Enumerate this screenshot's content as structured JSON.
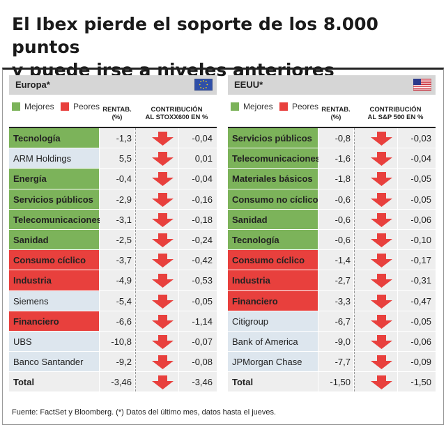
{
  "headline": {
    "line1": "El Ibex pierde el soporte de los 8.000 puntos",
    "line2": "y puede irse a niveles anteriores"
  },
  "colors": {
    "mejores": "#7cb35a",
    "peores": "#e8403d",
    "default": "#dde6ee",
    "arrow": "#e8403d",
    "gray": "#eeeeee"
  },
  "legend": {
    "mejores": "Mejores",
    "peores": "Peores"
  },
  "europa": {
    "title": "Europa*",
    "flag_icon": "eu-flag-icon",
    "col_rentab": [
      "RENTAB.",
      "(%)"
    ],
    "col_contrib": [
      "CONTRIBUCIÓN",
      "AL STOXX600 EN %"
    ]
  },
  "eeuu": {
    "title": "EEUU*",
    "flag_icon": "us-flag-icon",
    "col_rentab": [
      "RENTAB.",
      "(%)"
    ],
    "col_contrib": [
      "CONTRIBUCIÓN",
      "AL S&P 500 EN %"
    ]
  },
  "chart_data": [
    {
      "type": "table",
      "title": "Europa*",
      "columns": [
        "",
        "RENTAB. (%)",
        "CONTRIBUCIÓN AL STOXX600 EN %"
      ],
      "rows": [
        {
          "name": "Tecnología",
          "group": "mejores",
          "rentab": "-1,3",
          "contrib": "-0,04"
        },
        {
          "name": "ARM Holdings",
          "group": "none",
          "rentab": "5,5",
          "contrib": "0,01"
        },
        {
          "name": "Energía",
          "group": "mejores",
          "rentab": "-0,4",
          "contrib": "-0,04"
        },
        {
          "name": "Servicios públicos",
          "group": "mejores",
          "rentab": "-2,9",
          "contrib": "-0,16"
        },
        {
          "name": "Telecomunicaciones",
          "group": "mejores",
          "rentab": "-3,1",
          "contrib": "-0,18"
        },
        {
          "name": "Sanidad",
          "group": "mejores",
          "rentab": "-2,5",
          "contrib": "-0,24"
        },
        {
          "name": "Consumo cíclico",
          "group": "peores",
          "rentab": "-3,7",
          "contrib": "-0,42"
        },
        {
          "name": "Industria",
          "group": "peores",
          "rentab": "-4,9",
          "contrib": "-0,53"
        },
        {
          "name": "Siemens",
          "group": "none",
          "rentab": "-5,4",
          "contrib": "-0,05"
        },
        {
          "name": "Financiero",
          "group": "peores",
          "rentab": "-6,6",
          "contrib": "-1,14"
        },
        {
          "name": "UBS",
          "group": "none",
          "rentab": "-10,8",
          "contrib": "-0,07"
        },
        {
          "name": "Banco Santander",
          "group": "none",
          "rentab": "-9,2",
          "contrib": "-0,08"
        },
        {
          "name": "Total",
          "group": "total",
          "rentab": "-3,46",
          "contrib": "-3,46"
        }
      ]
    },
    {
      "type": "table",
      "title": "EEUU*",
      "columns": [
        "",
        "RENTAB. (%)",
        "CONTRIBUCIÓN AL S&P 500 EN %"
      ],
      "rows": [
        {
          "name": "Servicios públicos",
          "group": "mejores",
          "rentab": "-0,8",
          "contrib": "-0,03"
        },
        {
          "name": "Telecomunicaciones",
          "group": "mejores",
          "rentab": "-1,6",
          "contrib": "-0,04"
        },
        {
          "name": "Materiales básicos",
          "group": "mejores",
          "rentab": "-1,8",
          "contrib": "-0,05"
        },
        {
          "name": "Consumo no cíclico",
          "group": "mejores",
          "rentab": "-0,6",
          "contrib": "-0,05"
        },
        {
          "name": "Sanidad",
          "group": "mejores",
          "rentab": "-0,6",
          "contrib": "-0,06"
        },
        {
          "name": "Tecnología",
          "group": "mejores",
          "rentab": "-0,6",
          "contrib": "-0,10"
        },
        {
          "name": "Consumo cíclico",
          "group": "peores",
          "rentab": "-1,4",
          "contrib": "-0,17"
        },
        {
          "name": "Industria",
          "group": "peores",
          "rentab": "-2,7",
          "contrib": "-0,31"
        },
        {
          "name": "Financiero",
          "group": "peores",
          "rentab": "-3,3",
          "contrib": "-0,47"
        },
        {
          "name": "Citigroup",
          "group": "none",
          "rentab": "-6,7",
          "contrib": "-0,05"
        },
        {
          "name": "Bank of America",
          "group": "none",
          "rentab": "-9,0",
          "contrib": "-0,06"
        },
        {
          "name": "JPMorgan Chase",
          "group": "none",
          "rentab": "-7,7",
          "contrib": "-0,09"
        },
        {
          "name": "Total",
          "group": "total",
          "rentab": "-1,50",
          "contrib": "-1,50"
        }
      ]
    }
  ],
  "footer": "Fuente: FactSet y Bloomberg. (*) Datos del último mes, datos hasta el jueves."
}
